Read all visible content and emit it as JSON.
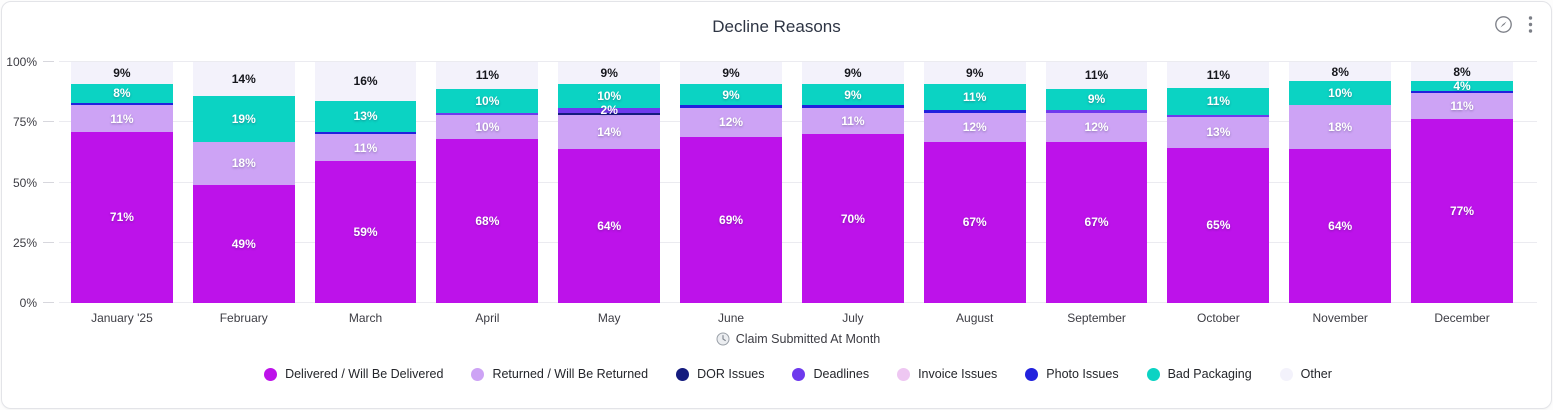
{
  "header": {
    "title": "Decline Reasons",
    "action_icons": [
      "compass-icon",
      "kebab-menu-icon"
    ]
  },
  "chart_data": {
    "type": "bar",
    "stacked": true,
    "percent_stacked": true,
    "title": "Decline Reasons",
    "xlabel": "Claim Submitted At Month",
    "ylabel": "",
    "ylim": [
      0,
      100
    ],
    "ytick_values": [
      0,
      25,
      50,
      75,
      100
    ],
    "ytick_labels": [
      "0%",
      "25%",
      "50%",
      "75%",
      "100%"
    ],
    "grid": true,
    "legend_position": "bottom",
    "label_min_value": 2,
    "categories": [
      "January '25",
      "February",
      "March",
      "April",
      "May",
      "June",
      "July",
      "August",
      "September",
      "October",
      "November",
      "December"
    ],
    "series": [
      {
        "name": "Delivered / Will Be Delivered",
        "color": "#bd12ea",
        "values": [
          71,
          49,
          59,
          68,
          64,
          69,
          70,
          67,
          67,
          65,
          64,
          77
        ]
      },
      {
        "name": "Returned / Will Be Returned",
        "color": "#cda3f5",
        "values": [
          11,
          18,
          11,
          10,
          14,
          12,
          11,
          12,
          12,
          13,
          18,
          11
        ]
      },
      {
        "name": "DOR Issues",
        "color": "#141b7e",
        "values": [
          0,
          0,
          0,
          0,
          1,
          0,
          0,
          0,
          0,
          0,
          0,
          0
        ]
      },
      {
        "name": "Deadlines",
        "color": "#6e3aed",
        "values": [
          0,
          0,
          0,
          1,
          2,
          0,
          0,
          0,
          1,
          1,
          0,
          0
        ]
      },
      {
        "name": "Invoice Issues",
        "color": "#eec7f2",
        "values": [
          0,
          0,
          0,
          0,
          0,
          0,
          0,
          0,
          0,
          0,
          0,
          0
        ]
      },
      {
        "name": "Photo Issues",
        "color": "#2222dd",
        "values": [
          1,
          0,
          1,
          0,
          0,
          1,
          1,
          1,
          0,
          0,
          0,
          1
        ]
      },
      {
        "name": "Bad Packaging",
        "color": "#0bd3c3",
        "values": [
          8,
          19,
          13,
          10,
          10,
          9,
          9,
          11,
          9,
          11,
          10,
          4
        ]
      },
      {
        "name": "Other",
        "color": "#f3f2fb",
        "label_dark": true,
        "values": [
          9,
          14,
          16,
          11,
          9,
          9,
          9,
          9,
          11,
          11,
          8,
          8
        ]
      }
    ]
  }
}
